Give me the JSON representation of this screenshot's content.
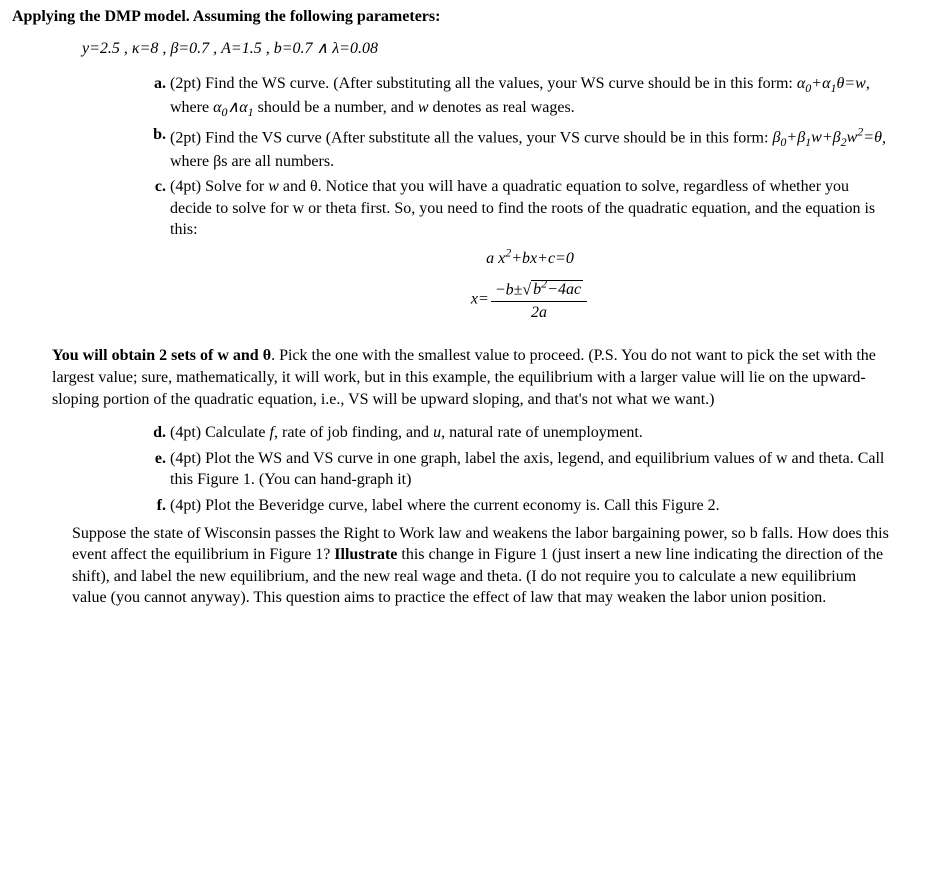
{
  "heading": "Applying the DMP model. Assuming the following parameters:",
  "parameters_line": "y=2.5 , κ=8 , β=0.7 , A=1.5 , b=0.7 ∧ λ=0.08",
  "items": {
    "a": {
      "marker": "a.",
      "pts": "(2pt) ",
      "text1": "Find the WS curve. (After substituting all the values, your WS curve should be in this form: ",
      "formula_ws": "α",
      "text2": ", where ",
      "text3": " should be a number, and ",
      "var_w": "w",
      "text4": " denotes as real wages."
    },
    "b": {
      "marker": "b.",
      "pts": "(2pt) ",
      "text1": "Find the VS curve (After substitute all the values, your VS curve should be in this form: ",
      "text2": ", where βs are all numbers."
    },
    "c": {
      "marker": "c.",
      "pts": "(4pt) ",
      "text1": "Solve for ",
      "var_w": "w",
      "text2": " and θ. Notice that you will have a quadratic equation to solve, regardless of whether you decide to solve for w or theta first. So, you need to find the roots of the quadratic equation, and the equation is this:",
      "eq1_a": "a x",
      "eq1_rest": "+bx+c=0",
      "eq2_lhs": "x=",
      "eq2_num_left": "−b±",
      "eq2_sqrt_sym": "√",
      "eq2_under_sqrt_b": "b",
      "eq2_under_sqrt_rest": "−4ac",
      "eq2_den": "2a"
    },
    "d": {
      "marker": "d.",
      "pts": "(4pt) ",
      "text1": "Calculate ",
      "var_f": "f",
      "text2": ", rate of job finding, and ",
      "var_u": "u",
      "text3": ", natural rate of unemployment."
    },
    "e": {
      "marker": "e.",
      "pts": "(4pt) ",
      "text": "Plot the WS and VS curve in one graph, label the axis, legend, and equilibrium values of w and theta. Call this Figure 1. (You can hand-graph it)"
    },
    "f": {
      "marker": "f.",
      "pts": "(4pt) ",
      "text": "Plot the Beveridge curve, label where the current economy is. Call this Figure 2."
    }
  },
  "mid_para": {
    "lead_bold": "You will obtain 2 sets of w and θ",
    "rest": ". Pick the one with the smallest value to proceed. (P.S. You do not want to pick the set with the largest value; sure, mathematically, it will work, but in this example, the equilibrium with a larger value will lie on the upward-sloping portion of the quadratic equation, i.e., VS will be upward sloping, and that's not what we want.)"
  },
  "final_para": {
    "t1": "Suppose the state of Wisconsin passes the Right to Work law and weakens the labor bargaining power, so b falls. How does this event affect the equilibrium in Figure 1? ",
    "bold": "Illustrate",
    "t2": " this change in Figure 1 (just insert a new line indicating the direction of the shift), and label the new equilibrium, and the new real wage and theta. (I do not require you to calculate a new equilibrium value (you cannot anyway). This question aims to practice the effect of law that may weaken the labor union position."
  },
  "math": {
    "alpha0": "α",
    "alpha1": "α",
    "sub0": "0",
    "sub1": "1",
    "theta": "θ",
    "eq_w": "=w",
    "wedge": "∧",
    "beta": "β",
    "sub2": "2",
    "w": "w",
    "eq_theta": "=θ",
    "sup2": "2",
    "plus": "+"
  }
}
